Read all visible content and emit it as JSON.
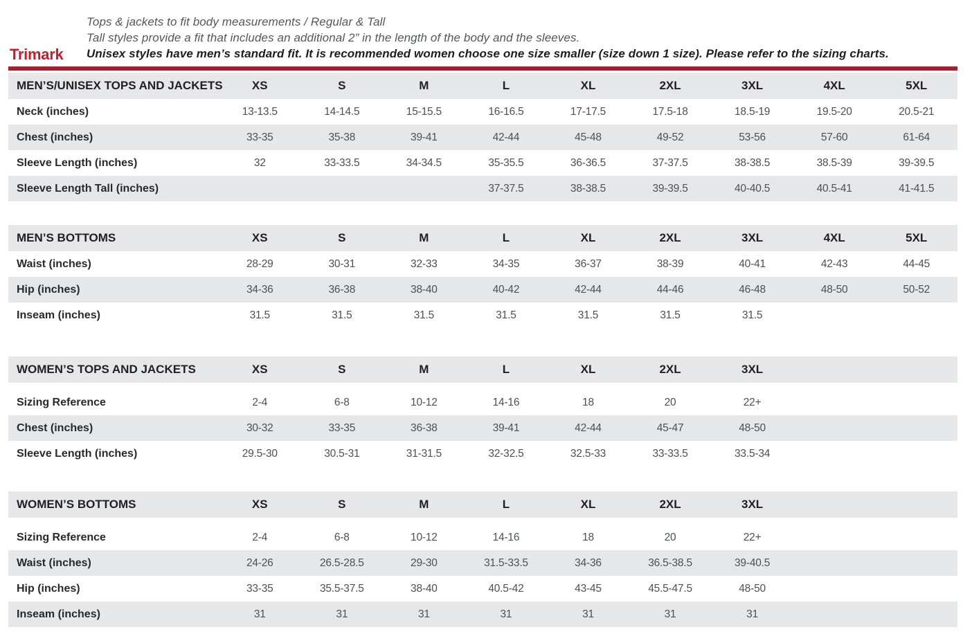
{
  "brand": "Trimark",
  "intro": {
    "line1": "Tops & jackets to fit body measurements / Regular & Tall",
    "line2": "Tall styles provide a fit that includes an additional 2” in the length of the body and the sleeves.",
    "line3": "Unisex styles have men’s standard fit. It is recommended women choose one size smaller (size down 1 size).  Please refer to the sizing charts."
  },
  "colors": {
    "brand_red": "#C0202E",
    "rule_red": "#A91E2C",
    "band_gray": "#E6E7E8"
  },
  "tables": [
    {
      "title": "MEN’S/UNISEX TOPS AND JACKETS",
      "sizes": [
        "XS",
        "S",
        "M",
        "L",
        "XL",
        "2XL",
        "3XL",
        "4XL",
        "5XL"
      ],
      "rows": [
        {
          "label": "Neck (inches)",
          "values": [
            "13-13.5",
            "14-14.5",
            "15-15.5",
            "16-16.5",
            "17-17.5",
            "17.5-18",
            "18.5-19",
            "19.5-20",
            "20.5-21"
          ]
        },
        {
          "label": "Chest (inches)",
          "values": [
            "33-35",
            "35-38",
            "39-41",
            "42-44",
            "45-48",
            "49-52",
            "53-56",
            "57-60",
            "61-64"
          ]
        },
        {
          "label": "Sleeve Length (inches)",
          "values": [
            "32",
            "33-33.5",
            "34-34.5",
            "35-35.5",
            "36-36.5",
            "37-37.5",
            "38-38.5",
            "38.5-39",
            "39-39.5"
          ]
        },
        {
          "label": "Sleeve Length Tall (inches)",
          "values": [
            "",
            "",
            "",
            "37-37.5",
            "38-38.5",
            "39-39.5",
            "40-40.5",
            "40.5-41",
            "41-41.5"
          ]
        }
      ]
    },
    {
      "title": "MEN’S BOTTOMS",
      "sizes": [
        "XS",
        "S",
        "M",
        "L",
        "XL",
        "2XL",
        "3XL",
        "4XL",
        "5XL"
      ],
      "rows": [
        {
          "label": "Waist (inches)",
          "values": [
            "28-29",
            "30-31",
            "32-33",
            "34-35",
            "36-37",
            "38-39",
            "40-41",
            "42-43",
            "44-45"
          ]
        },
        {
          "label": "Hip (inches)",
          "values": [
            "34-36",
            "36-38",
            "38-40",
            "40-42",
            "42-44",
            "44-46",
            "46-48",
            "48-50",
            "50-52"
          ]
        },
        {
          "label": "Inseam (inches)",
          "values": [
            "31.5",
            "31.5",
            "31.5",
            "31.5",
            "31.5",
            "31.5",
            "31.5",
            "",
            ""
          ]
        }
      ]
    },
    {
      "title": "WOMEN’S TOPS AND JACKETS",
      "sizes": [
        "XS",
        "S",
        "M",
        "L",
        "XL",
        "2XL",
        "3XL"
      ],
      "rows": [
        {
          "label": "Sizing Reference",
          "values": [
            "2-4",
            "6-8",
            "10-12",
            "14-16",
            "18",
            "20",
            "22+"
          ]
        },
        {
          "label": "Chest (inches)",
          "values": [
            "30-32",
            "33-35",
            "36-38",
            "39-41",
            "42-44",
            "45-47",
            "48-50"
          ]
        },
        {
          "label": "Sleeve Length (inches)",
          "values": [
            "29.5-30",
            "30.5-31",
            "31-31.5",
            "32-32.5",
            "32.5-33",
            "33-33.5",
            "33.5-34"
          ]
        }
      ]
    },
    {
      "title": "WOMEN’S BOTTOMS",
      "sizes": [
        "XS",
        "S",
        "M",
        "L",
        "XL",
        "2XL",
        "3XL"
      ],
      "rows": [
        {
          "label": "Sizing Reference",
          "values": [
            "2-4",
            "6-8",
            "10-12",
            "14-16",
            "18",
            "20",
            "22+"
          ]
        },
        {
          "label": "Waist (inches)",
          "values": [
            "24-26",
            "26.5-28.5",
            "29-30",
            "31.5-33.5",
            "34-36",
            "36.5-38.5",
            "39-40.5"
          ]
        },
        {
          "label": "Hip (inches)",
          "values": [
            "33-35",
            "35.5-37.5",
            "38-40",
            "40.5-42",
            "43-45",
            "45.5-47.5",
            "48-50"
          ]
        },
        {
          "label": "Inseam (inches)",
          "values": [
            "31",
            "31",
            "31",
            "31",
            "31",
            "31",
            "31"
          ]
        }
      ]
    }
  ]
}
